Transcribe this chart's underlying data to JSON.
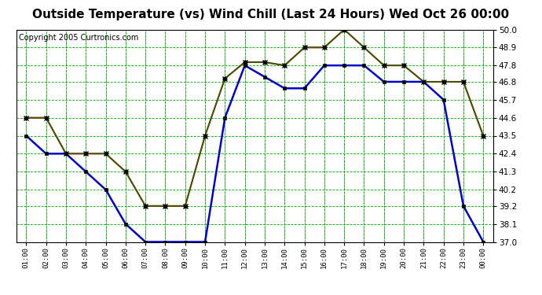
{
  "title": "Outside Temperature (vs) Wind Chill (Last 24 Hours) Wed Oct 26 00:00",
  "copyright": "Copyright 2005 Curtronics.com",
  "x_labels": [
    "01:00",
    "02:00",
    "03:00",
    "04:00",
    "05:00",
    "06:00",
    "07:00",
    "08:00",
    "09:00",
    "10:00",
    "11:00",
    "12:00",
    "13:00",
    "14:00",
    "15:00",
    "16:00",
    "17:00",
    "18:00",
    "19:00",
    "20:00",
    "21:00",
    "22:00",
    "23:00",
    "00:00"
  ],
  "red_data": [
    44.6,
    44.6,
    42.4,
    42.4,
    42.4,
    41.3,
    39.2,
    39.2,
    39.2,
    43.5,
    47.0,
    48.0,
    48.0,
    47.8,
    48.9,
    48.9,
    50.0,
    48.9,
    47.8,
    47.8,
    46.8,
    46.8,
    46.8,
    43.5
  ],
  "blue_data": [
    43.5,
    42.4,
    42.4,
    41.3,
    40.2,
    38.1,
    37.0,
    37.0,
    37.0,
    37.0,
    44.6,
    47.8,
    47.1,
    46.4,
    46.4,
    47.8,
    47.8,
    47.8,
    46.8,
    46.8,
    46.8,
    45.7,
    39.2,
    37.0
  ],
  "green_data": [
    44.6,
    44.6,
    42.4,
    42.4,
    42.4,
    41.3,
    39.2,
    39.2,
    39.2,
    43.5,
    47.0,
    48.0,
    48.0,
    47.8,
    48.9,
    48.9,
    50.0,
    48.9,
    47.8,
    47.8,
    46.8,
    46.8,
    46.8,
    43.5
  ],
  "ylim": [
    37.0,
    50.0
  ],
  "yticks": [
    37.0,
    38.1,
    39.2,
    40.2,
    41.3,
    42.4,
    43.5,
    44.6,
    45.7,
    46.8,
    47.8,
    48.9,
    50.0
  ],
  "red_color": "#dd0000",
  "blue_color": "#0000cc",
  "green_line_color": "#007700",
  "green_grid_color": "#00aa00",
  "bg_color": "#ffffff",
  "title_fontsize": 11,
  "copyright_fontsize": 7
}
